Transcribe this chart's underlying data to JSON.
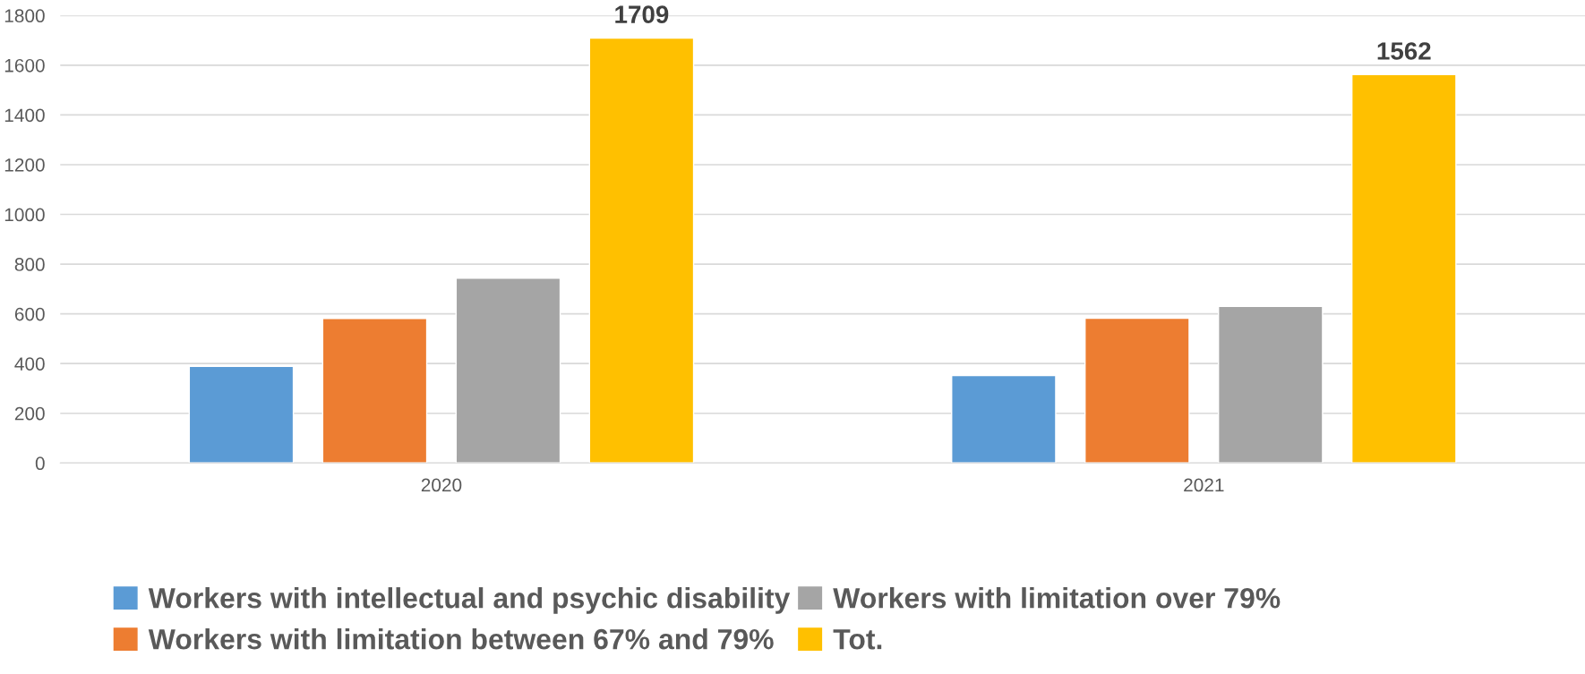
{
  "chart_data": {
    "type": "bar",
    "categories": [
      "2020",
      "2021"
    ],
    "series": [
      {
        "name": "Workers with intellectual and psychic disability",
        "color": "#5b9bd5",
        "values": [
          389,
          352
        ]
      },
      {
        "name": "Workers with limitation between 67% and 79%",
        "color": "#ed7d31",
        "values": [
          581,
          582
        ]
      },
      {
        "name": "Workers with limitation over 79%",
        "color": "#a5a5a5",
        "values": [
          743,
          630
        ]
      },
      {
        "name": "Tot.",
        "color": "#ffc000",
        "values": [
          1709,
          1562
        ],
        "value_labels": [
          "1709",
          "1562"
        ]
      }
    ],
    "ylim": [
      0,
      1800
    ],
    "yticks": [
      0,
      200,
      400,
      600,
      800,
      1000,
      1200,
      1400,
      1600,
      1800
    ],
    "grid": "y",
    "legend": "bottom"
  }
}
